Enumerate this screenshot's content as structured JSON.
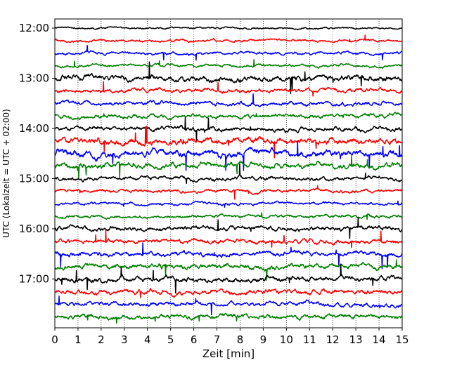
{
  "chart_data": {
    "type": "line",
    "title": "",
    "xlabel": "Zeit  [min]",
    "ylabel": "UTC (Lokalzeit = UTC + 02:00)",
    "xlim": [
      0,
      15
    ],
    "x_ticks": [
      "0",
      "1",
      "2",
      "3",
      "4",
      "5",
      "6",
      "7",
      "8",
      "9",
      "10",
      "11",
      "12",
      "13",
      "14",
      "15"
    ],
    "y_tick_labels": [
      "12:00",
      "13:00",
      "14:00",
      "15:00",
      "16:00",
      "17:00"
    ],
    "grid": "vertical dotted lines at each minute",
    "legend": "none",
    "trace_interval_minutes": 15,
    "trace_color_cycle": [
      "#000000",
      "#ff0000",
      "#0000ff",
      "#008000"
    ],
    "traces": [
      {
        "start": "12:00",
        "activity": 0.6
      },
      {
        "start": "12:15",
        "activity": 0.8
      },
      {
        "start": "12:30",
        "activity": 0.9
      },
      {
        "start": "12:45",
        "activity": 0.9
      },
      {
        "start": "13:00",
        "activity": 1.8
      },
      {
        "start": "13:15",
        "activity": 1.3
      },
      {
        "start": "13:30",
        "activity": 1.2
      },
      {
        "start": "13:45",
        "activity": 1.3
      },
      {
        "start": "14:00",
        "activity": 1.4
      },
      {
        "start": "14:15",
        "activity": 2.0
      },
      {
        "start": "14:30",
        "activity": 2.2
      },
      {
        "start": "14:45",
        "activity": 1.8
      },
      {
        "start": "15:00",
        "activity": 1.3
      },
      {
        "start": "15:15",
        "activity": 1.0
      },
      {
        "start": "15:30",
        "activity": 0.9
      },
      {
        "start": "15:45",
        "activity": 1.0
      },
      {
        "start": "16:00",
        "activity": 1.4
      },
      {
        "start": "16:15",
        "activity": 1.4
      },
      {
        "start": "16:30",
        "activity": 1.5
      },
      {
        "start": "16:45",
        "activity": 1.6
      },
      {
        "start": "17:00",
        "activity": 1.6
      },
      {
        "start": "17:15",
        "activity": 1.5
      },
      {
        "start": "17:30",
        "activity": 1.3
      },
      {
        "start": "17:45",
        "activity": 1.4
      }
    ]
  }
}
